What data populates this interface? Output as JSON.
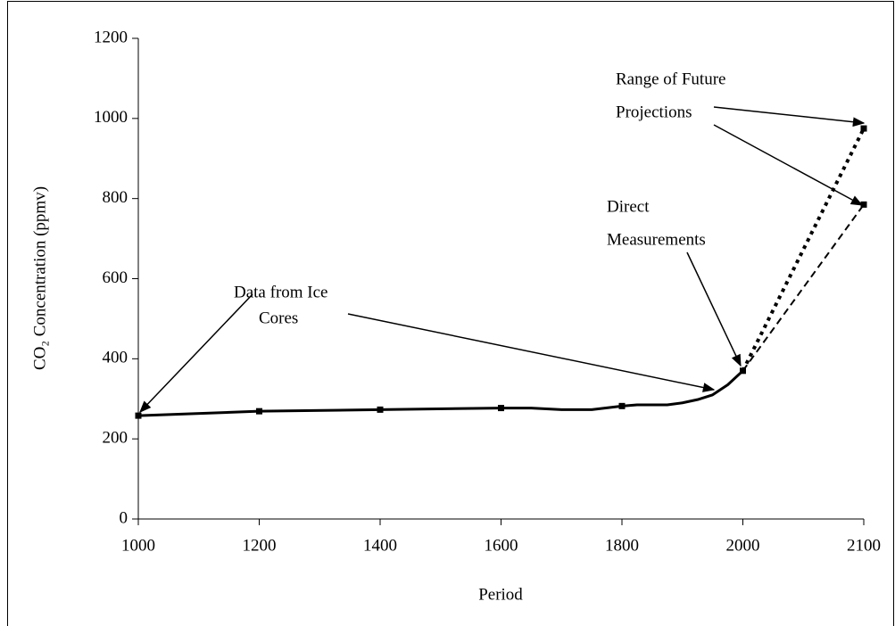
{
  "chart_data": {
    "type": "line",
    "x_title": "Period",
    "y_title": "CO₂ Concentration (ppmv)",
    "xlim": [
      1000,
      2100
    ],
    "xticks": [
      1000,
      1200,
      1400,
      1600,
      1800,
      2000,
      2100
    ],
    "ylim": [
      0,
      1200
    ],
    "yticks": [
      0,
      200,
      400,
      600,
      800,
      1000,
      1200
    ],
    "grid": false,
    "series": [
      {
        "color": "#000000",
        "style": "solid",
        "x": [
          1000,
          1200,
          1400,
          1600,
          1650,
          1700,
          1750,
          1800,
          1825,
          1850,
          1875,
          1900,
          1925,
          1950,
          1975,
          2000
        ],
        "values": [
          258,
          269,
          273,
          277,
          277,
          273,
          273,
          282,
          285,
          285,
          285,
          290,
          298,
          310,
          335,
          370
        ]
      },
      {
        "color": "#000000",
        "style": "dotted",
        "x": [
          2000,
          2100
        ],
        "values": [
          370,
          975
        ]
      },
      {
        "color": "#000000",
        "style": "dashed",
        "x": [
          2000,
          2100
        ],
        "values": [
          370,
          785
        ]
      }
    ],
    "annotations": [
      {
        "lines": [
          "Data from Ice",
          "Cores"
        ]
      },
      {
        "lines": [
          "Direct",
          "Measurements"
        ]
      },
      {
        "lines": [
          "Range of Future",
          "Projections"
        ]
      }
    ]
  }
}
